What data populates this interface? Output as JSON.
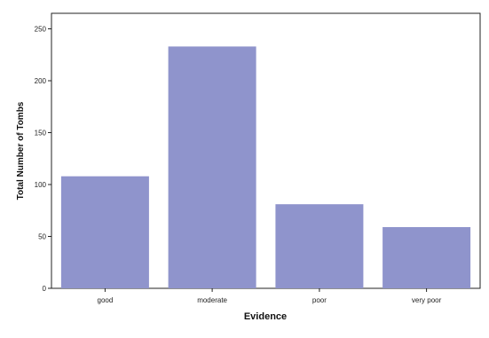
{
  "chart_data": {
    "type": "bar",
    "categories": [
      "good",
      "moderate",
      "poor",
      "very poor"
    ],
    "values": [
      108,
      233,
      81,
      59
    ],
    "xlabel": "Evidence",
    "ylabel": "Total Number of Tombs",
    "ylim": [
      0,
      265
    ],
    "yticks": [
      0,
      50,
      100,
      150,
      200,
      250
    ],
    "bar_color": "#8f94cc",
    "grid": false
  }
}
